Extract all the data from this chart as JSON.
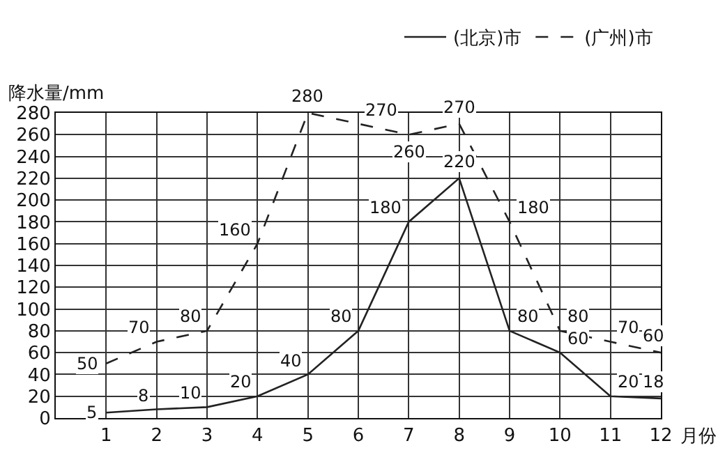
{
  "chart_data": {
    "type": "line",
    "xlabel": "月份",
    "ylabel": "降水量/mm",
    "x": [
      1,
      2,
      3,
      4,
      5,
      6,
      7,
      8,
      9,
      10,
      11,
      12
    ],
    "series": [
      {
        "name": "(北京)市",
        "color": "#222222",
        "line_style": "solid",
        "values": [
          5,
          8,
          10,
          20,
          40,
          80,
          180,
          220,
          80,
          60,
          20,
          18
        ]
      },
      {
        "name": "(广州)市",
        "color": "#222222",
        "line_style": "dashed",
        "values": [
          50,
          70,
          80,
          160,
          280,
          270,
          260,
          270,
          180,
          80,
          70,
          60
        ]
      }
    ],
    "xlim": [
      0,
      12
    ],
    "xticks": [
      1,
      2,
      3,
      4,
      5,
      6,
      7,
      8,
      9,
      10,
      11,
      12
    ],
    "ylim": [
      0,
      280
    ],
    "yticks": [
      0,
      20,
      40,
      60,
      80,
      100,
      120,
      140,
      160,
      180,
      200,
      220,
      240,
      260,
      280
    ],
    "grid": true,
    "legend": "top right",
    "data_labels": true,
    "marker": "none"
  }
}
